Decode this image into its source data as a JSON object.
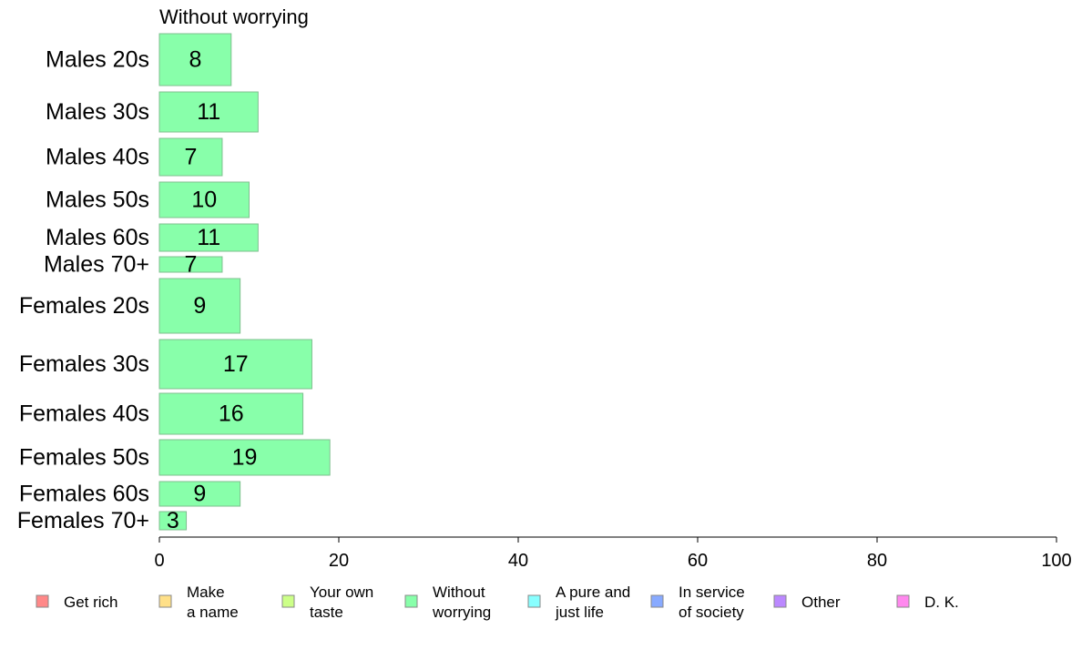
{
  "chart_data": {
    "type": "bar",
    "orientation": "horizontal",
    "title": "Without worrying",
    "categories": [
      "Males 20s",
      "Males 30s",
      "Males 40s",
      "Males 50s",
      "Males 60s",
      "Males 70+",
      "Females 20s",
      "Females 30s",
      "Females 40s",
      "Females 50s",
      "Females 60s",
      "Females 70+"
    ],
    "values": [
      8,
      11,
      7,
      10,
      11,
      7,
      9,
      17,
      16,
      19,
      9,
      3
    ],
    "xlim": [
      0,
      100
    ],
    "xticks": [
      0,
      20,
      40,
      60,
      80,
      100
    ],
    "bar_color": "#88ffaa",
    "bar_edge_color": "#7fbf8f",
    "grid": false,
    "legend_position": "bottom",
    "legend": [
      {
        "lines": [
          "Get rich"
        ],
        "color": "#ff8888"
      },
      {
        "lines": [
          "Make",
          "a name"
        ],
        "color": "#ffe088"
      },
      {
        "lines": [
          "Your own",
          "taste"
        ],
        "color": "#ccff88"
      },
      {
        "lines": [
          "Without",
          "worrying"
        ],
        "color": "#88ffaa"
      },
      {
        "lines": [
          "A pure and",
          "just life"
        ],
        "color": "#88ffff"
      },
      {
        "lines": [
          "In service",
          "of society"
        ],
        "color": "#88aaff"
      },
      {
        "lines": [
          "Other"
        ],
        "color": "#bb88ff"
      },
      {
        "lines": [
          "D. K."
        ],
        "color": "#ff88ee"
      }
    ]
  }
}
